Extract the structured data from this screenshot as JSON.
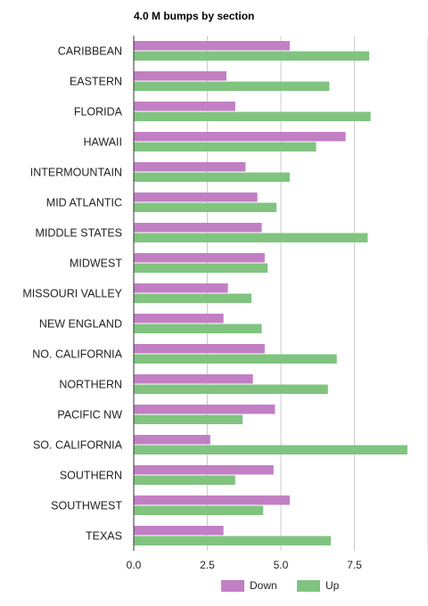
{
  "chart_data": {
    "type": "bar",
    "orientation": "horizontal",
    "title": "4.0 M bumps by section",
    "xlabel": "",
    "ylabel": "",
    "xlim": [
      0,
      10
    ],
    "xticks": [
      "0.0",
      "2.5",
      "5.0",
      "7.5"
    ],
    "grid": true,
    "legend": "bottom",
    "categories": [
      "CARIBBEAN",
      "EASTERN",
      "FLORIDA",
      "HAWAII",
      "INTERMOUNTAIN",
      "MID ATLANTIC",
      "MIDDLE STATES",
      "MIDWEST",
      "MISSOURI VALLEY",
      "NEW ENGLAND",
      "NO. CALIFORNIA",
      "NORTHERN",
      "PACIFIC NW",
      "SO. CALIFORNIA",
      "SOUTHERN",
      "SOUTHWEST",
      "TEXAS"
    ],
    "series": [
      {
        "name": "Down",
        "color": "#c27fc4",
        "values": [
          5.3,
          3.15,
          3.45,
          7.2,
          3.8,
          4.2,
          4.35,
          4.45,
          3.2,
          3.05,
          4.45,
          4.05,
          4.8,
          2.6,
          4.75,
          5.3,
          3.05
        ]
      },
      {
        "name": "Up",
        "color": "#80c480",
        "values": [
          8.0,
          6.65,
          8.05,
          6.2,
          5.3,
          4.85,
          7.95,
          4.55,
          4.0,
          4.35,
          6.9,
          6.6,
          3.7,
          9.3,
          3.45,
          4.4,
          6.7
        ]
      }
    ]
  }
}
